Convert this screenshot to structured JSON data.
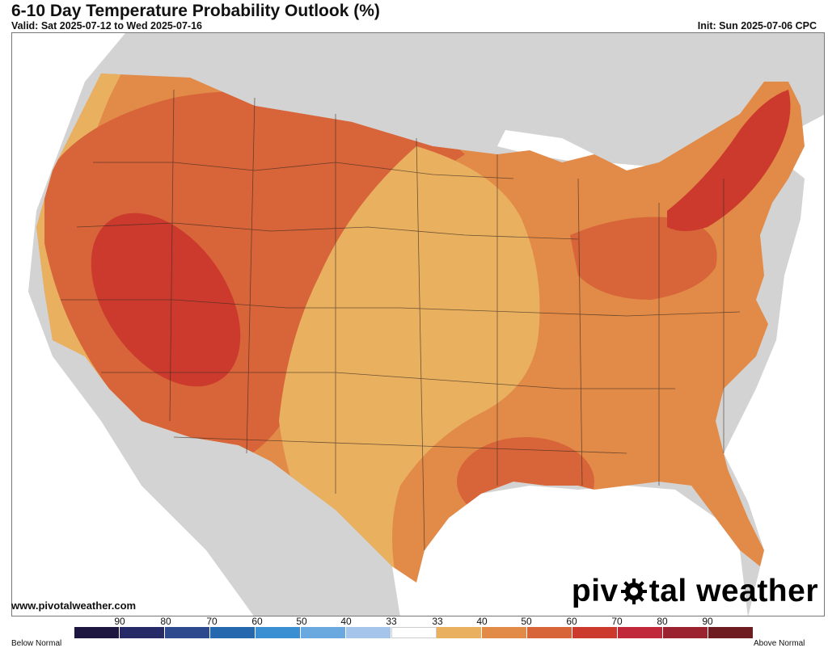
{
  "header": {
    "title": "6-10 Day Temperature Probability Outlook (%)",
    "valid": "Valid: Sat 2025-07-12 to Wed 2025-07-16",
    "init": "Init: Sun 2025-07-06 CPC"
  },
  "footer": {
    "url": "www.pivotalweather.com",
    "brand_left": "piv",
    "brand_right": "tal weather",
    "brand_icon": "gear-icon"
  },
  "legend": {
    "below_label": "Below Normal",
    "above_label": "Above Normal",
    "below_ticks": [
      "90",
      "80",
      "70",
      "60",
      "50",
      "40",
      "33"
    ],
    "above_ticks": [
      "33",
      "40",
      "50",
      "60",
      "70",
      "80",
      "90"
    ],
    "below_colors": [
      "#1c1640",
      "#262a66",
      "#2d4a8e",
      "#2668ad",
      "#3a8ed2",
      "#6aa9e0",
      "#a5c6ea"
    ],
    "neutral_color": "#ffffff",
    "above_colors": [
      "#e9b060",
      "#e28b48",
      "#d8643a",
      "#cc3a2e",
      "#c1293a",
      "#9b2330",
      "#6e1c20"
    ]
  },
  "map": {
    "land_color": "#d3d3d3",
    "water_color": "#ffffff",
    "zones": [
      {
        "name": "west-coast-40",
        "level": "40"
      },
      {
        "name": "west-50",
        "level": "50"
      },
      {
        "name": "great-basin-60",
        "level": "60"
      },
      {
        "name": "nevada-utah-70",
        "level": "70"
      },
      {
        "name": "plains-33-40",
        "level": "40"
      },
      {
        "name": "east-50",
        "level": "50"
      },
      {
        "name": "ohio-valley-60",
        "level": "60"
      },
      {
        "name": "new-york-70",
        "level": "70"
      },
      {
        "name": "gulf-60",
        "level": "60"
      }
    ]
  }
}
